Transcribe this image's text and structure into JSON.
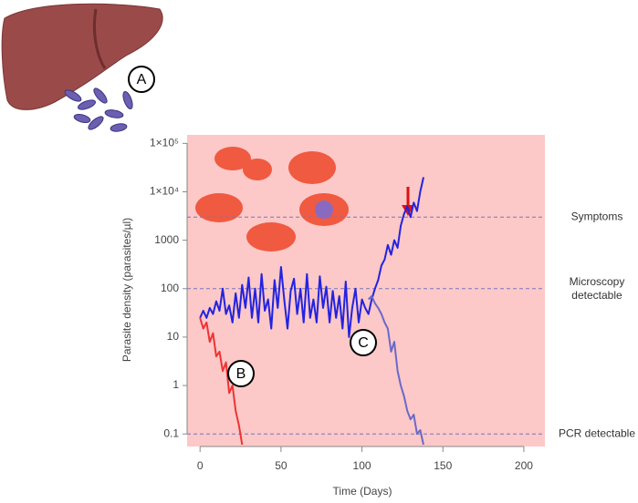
{
  "chart_data": {
    "type": "line",
    "x_label": "Time (Days)",
    "y_label": "Parasite density (parasites/µl)",
    "log_y": true,
    "xlim": [
      -8,
      213
    ],
    "ylim": [
      0.055,
      150000
    ],
    "xticks": [
      0,
      50,
      100,
      150,
      200
    ],
    "yticks": [
      0.1,
      1,
      10,
      100,
      1000,
      {
        "value": 10000,
        "label": "1×10⁴"
      },
      {
        "value": 100000,
        "label": "1×10⁵"
      }
    ],
    "reference_lines": [
      {
        "value": 3000,
        "label": "Symptoms"
      },
      {
        "value": 100,
        "label": "Microscopy detectable"
      },
      {
        "value": 0.1,
        "label": "PCR detectable"
      }
    ],
    "annotations": [
      "A",
      "B",
      "C"
    ],
    "series": [
      {
        "color": "#2323e0",
        "x": [
          0,
          2,
          4,
          6,
          8,
          10,
          12,
          14,
          16,
          18,
          20,
          22,
          24,
          26,
          28,
          30,
          32,
          34,
          36,
          38,
          40,
          42,
          44,
          46,
          48,
          50,
          52,
          54,
          56,
          58,
          60,
          62,
          64,
          66,
          68,
          70,
          72,
          74,
          76,
          78,
          80,
          82,
          84,
          86,
          88,
          90,
          92,
          94,
          96,
          98,
          100,
          102,
          104,
          106,
          108,
          110,
          112,
          114,
          116,
          118,
          120,
          122,
          124,
          126,
          128,
          130,
          132,
          134,
          136,
          138
        ],
        "values": [
          25,
          35,
          25,
          40,
          30,
          55,
          35,
          100,
          30,
          45,
          20,
          80,
          25,
          120,
          40,
          170,
          25,
          100,
          20,
          200,
          35,
          60,
          15,
          150,
          40,
          280,
          60,
          15,
          90,
          160,
          30,
          100,
          20,
          200,
          25,
          60,
          20,
          180,
          40,
          110,
          20,
          90,
          25,
          70,
          15,
          140,
          10,
          40,
          100,
          20,
          60,
          40,
          30,
          60,
          100,
          150,
          300,
          400,
          800,
          500,
          1000,
          700,
          2000,
          3500,
          5000,
          3000,
          6000,
          4000,
          10000,
          20000
        ]
      },
      {
        "color": "#6a6ac8",
        "x": [
          104,
          106,
          108,
          110,
          112,
          114,
          116,
          118,
          120,
          122,
          124,
          126,
          128,
          130,
          132,
          134,
          136,
          138
        ],
        "values": [
          60,
          70,
          50,
          40,
          30,
          20,
          15,
          5,
          8,
          2,
          1,
          0.6,
          0.3,
          0.2,
          0.25,
          0.1,
          0.12,
          0.06
        ]
      },
      {
        "color": "#ee3333",
        "x": [
          0,
          2,
          4,
          6,
          8,
          10,
          12,
          14,
          16,
          18,
          20,
          22,
          24,
          26
        ],
        "values": [
          25,
          15,
          20,
          8,
          12,
          4,
          5,
          2,
          3,
          0.7,
          1,
          0.3,
          0.15,
          0.06
        ]
      }
    ]
  }
}
